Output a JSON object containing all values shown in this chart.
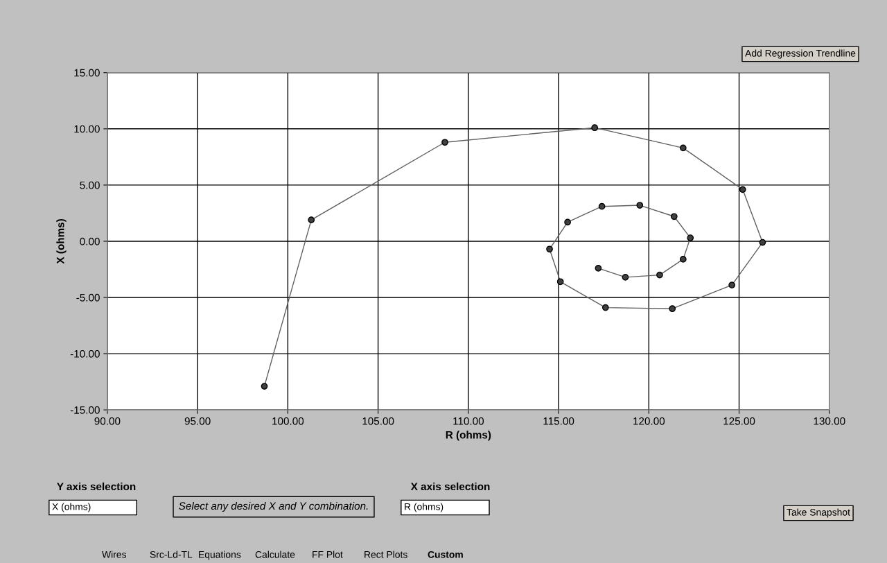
{
  "chart_data": {
    "type": "line",
    "xlabel": "R (ohms)",
    "ylabel": "X (ohms)",
    "x": [
      98.7,
      101.3,
      108.7,
      117.0,
      121.9,
      125.2,
      126.3,
      124.6,
      121.3,
      117.6,
      115.1,
      114.5,
      115.5,
      117.4,
      119.5,
      121.4,
      122.3,
      121.9,
      120.6,
      118.7,
      117.2
    ],
    "series": [
      {
        "color": "#404040",
        "values": [
          -12.9,
          1.9,
          8.8,
          10.1,
          8.3,
          4.6,
          -0.1,
          -3.9,
          -6.0,
          -5.9,
          -3.6,
          -0.7,
          1.7,
          3.1,
          3.2,
          2.2,
          0.3,
          -1.6,
          -3.0,
          -3.2,
          -2.4
        ]
      }
    ],
    "xlim": [
      90,
      130
    ],
    "xticks": [
      {
        "value": 90,
        "label": "90.00"
      },
      {
        "value": 95,
        "label": "95.00"
      },
      {
        "value": 100,
        "label": "100.00"
      },
      {
        "value": 105,
        "label": "105.00"
      },
      {
        "value": 110,
        "label": "110.00"
      },
      {
        "value": 115,
        "label": "115.00"
      },
      {
        "value": 120,
        "label": "120.00"
      },
      {
        "value": 125,
        "label": "125.00"
      },
      {
        "value": 130,
        "label": "130.00"
      }
    ],
    "ylim": [
      -15,
      15
    ],
    "yticks": [
      {
        "value": -15,
        "label": "-15.00"
      },
      {
        "value": -10,
        "label": "-10.00"
      },
      {
        "value": -5,
        "label": "-5.00"
      },
      {
        "value": 0,
        "label": "0.00"
      },
      {
        "value": 5,
        "label": "5.00"
      },
      {
        "value": 10,
        "label": "10.00"
      },
      {
        "value": 15,
        "label": "15.00"
      }
    ],
    "grid": true,
    "marker": "circle",
    "line_style": "solid",
    "annotations": [
      "Add Regression Trendline",
      "Take Snapshot",
      "Y axis selection",
      "X (ohms)",
      "Select any desired X and Y combination.",
      "X axis selection",
      "R (ohms)",
      "Wires",
      "Src-Ld-TL",
      "Equations",
      "Calculate",
      "FF Plot",
      "Rect Plots",
      "Custom"
    ]
  }
}
